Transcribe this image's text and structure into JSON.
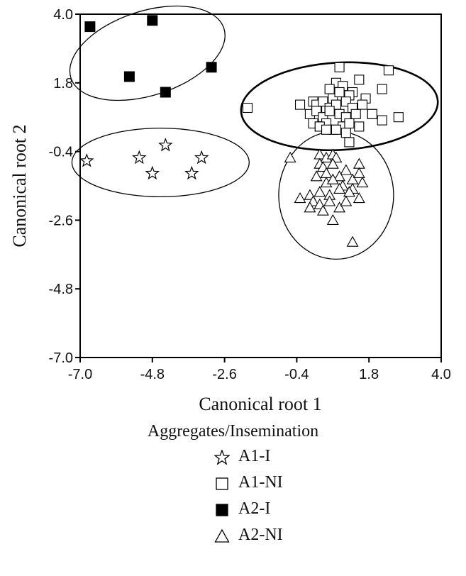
{
  "chart_data": {
    "type": "scatter",
    "xlabel": "Canonical root 1",
    "ylabel": "Canonical root 2",
    "xlim": [
      -7.0,
      4.0
    ],
    "ylim": [
      -7.0,
      4.0
    ],
    "xticks": [
      "-7.0",
      "-4.8",
      "-2.6",
      "-0.4",
      "1.8",
      "4.0"
    ],
    "yticks": [
      "4.0",
      "1.8",
      "-0.4",
      "-2.6",
      "-4.8",
      "-7.0"
    ],
    "grid": false,
    "legend_title": "Aggregates/Insemination",
    "series": [
      {
        "name": "A1-I",
        "marker": "star",
        "x": [
          -6.8,
          -5.2,
          -4.4,
          -4.8,
          -3.6,
          -3.3
        ],
        "y": [
          -0.7,
          -0.6,
          -0.2,
          -1.1,
          -1.1,
          -0.6
        ]
      },
      {
        "name": "A1-NI",
        "marker": "open-square",
        "x": [
          -1.9,
          -0.3,
          0.1,
          0.5,
          0.7,
          0.8,
          1.3,
          1.5,
          2.2,
          2.4,
          0.9,
          1.0,
          0.6,
          0.9,
          1.2,
          1.7,
          0.2,
          0.4,
          0.6,
          0.8,
          1.1,
          1.3,
          1.6,
          1.9,
          0.0,
          0.2,
          0.4,
          0.6,
          0.9,
          1.1,
          1.4,
          1.9,
          2.2,
          2.7,
          0.1,
          0.3,
          0.5,
          0.7,
          1.0,
          1.2,
          1.5,
          0.3,
          0.5,
          0.8,
          1.1,
          1.2
        ],
        "y": [
          1.0,
          1.1,
          1.2,
          1.0,
          1.3,
          1.8,
          1.5,
          1.9,
          1.6,
          2.2,
          2.3,
          1.7,
          1.6,
          1.5,
          1.4,
          1.3,
          1.1,
          1.2,
          1.0,
          1.1,
          1.2,
          1.0,
          1.1,
          0.8,
          0.8,
          0.9,
          0.7,
          0.9,
          0.8,
          0.7,
          0.8,
          0.8,
          0.6,
          0.7,
          0.5,
          0.4,
          0.5,
          0.3,
          0.4,
          0.5,
          0.4,
          0.4,
          0.3,
          0.3,
          0.2,
          -0.1
        ]
      },
      {
        "name": "A2-I",
        "marker": "filled-square",
        "x": [
          -6.7,
          -4.8,
          -5.5,
          -3.0,
          -4.4
        ],
        "y": [
          3.6,
          3.8,
          2.0,
          2.3,
          1.5
        ]
      },
      {
        "name": "A2-NI",
        "marker": "open-triangle",
        "x": [
          -0.6,
          0.3,
          0.5,
          0.7,
          0.8,
          1.5,
          0.3,
          0.4,
          0.7,
          1.1,
          0.2,
          0.5,
          0.9,
          1.3,
          1.5,
          0.5,
          0.7,
          1.0,
          1.3,
          1.6,
          -0.3,
          0.0,
          0.3,
          0.6,
          0.9,
          1.2,
          1.5,
          0.1,
          0.3,
          0.6,
          0.9,
          1.1,
          0.7,
          0.0,
          0.4,
          1.3
        ],
        "y": [
          -0.6,
          -0.5,
          -0.6,
          -0.5,
          -0.6,
          -0.8,
          -0.8,
          -0.9,
          -0.8,
          -1.0,
          -1.2,
          -1.1,
          -1.2,
          -1.3,
          -1.1,
          -1.4,
          -1.3,
          -1.5,
          -1.6,
          -1.4,
          -1.9,
          -1.8,
          -1.7,
          -1.8,
          -1.6,
          -1.7,
          -1.9,
          -2.0,
          -2.1,
          -2.0,
          -2.2,
          -2.0,
          -2.6,
          -2.2,
          -2.3,
          -3.3
        ],
        "note_marker": "last point at 1.3"
      },
      {
        "name": "ellipses",
        "type": "confidence-ellipse",
        "groups": [
          "A2-I",
          "A1-I",
          "A1-NI",
          "A2-NI"
        ],
        "center_x": [
          -4.95,
          -4.55,
          0.9,
          0.8
        ],
        "center_y": [
          2.75,
          -0.75,
          1.05,
          -1.8
        ],
        "radius_x": [
          2.45,
          2.7,
          3.0,
          1.75
        ],
        "radius_y": [
          1.35,
          1.1,
          1.4,
          2.05
        ],
        "rotation_deg": [
          -18,
          0,
          -3,
          0
        ],
        "bold": [
          false,
          false,
          true,
          false
        ]
      }
    ]
  }
}
